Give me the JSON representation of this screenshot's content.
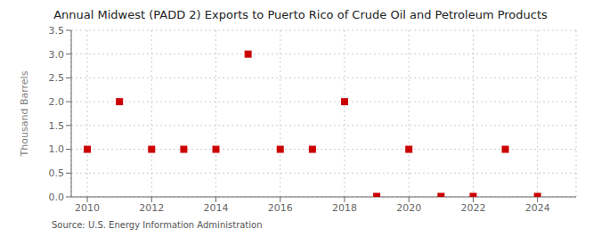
{
  "chart_data": {
    "type": "scatter",
    "title": "Annual Midwest (PADD 2) Exports to Puerto Rico of Crude Oil and Petroleum Products",
    "y_label": "Thousand Barrels",
    "annotations": [
      "Source: U.S. Energy Information Administration"
    ],
    "x": [
      2010,
      2011,
      2012,
      2013,
      2014,
      2015,
      2016,
      2017,
      2018,
      2019,
      2020,
      2021,
      2022,
      2023,
      2024
    ],
    "values": [
      1.0,
      2.0,
      1.0,
      1.0,
      1.0,
      3.0,
      1.0,
      1.0,
      2.0,
      0.01,
      1.0,
      0.01,
      0.01,
      1.0,
      0.01
    ],
    "color": "#cc0000",
    "marker": "square",
    "xlim": [
      2009.5,
      2025.2
    ],
    "ylim": [
      0.0,
      3.5
    ],
    "xticks": [
      2010,
      2012,
      2014,
      2016,
      2018,
      2020,
      2022,
      2024
    ],
    "yticks": [
      {
        "value": 0,
        "label": "0.0"
      },
      0.5,
      {
        "value": 1,
        "label": "1.0"
      },
      1.5,
      {
        "value": 2,
        "label": "2.0"
      },
      2.5,
      {
        "value": 3,
        "label": "3.0"
      },
      3.5
    ],
    "grid": true
  }
}
